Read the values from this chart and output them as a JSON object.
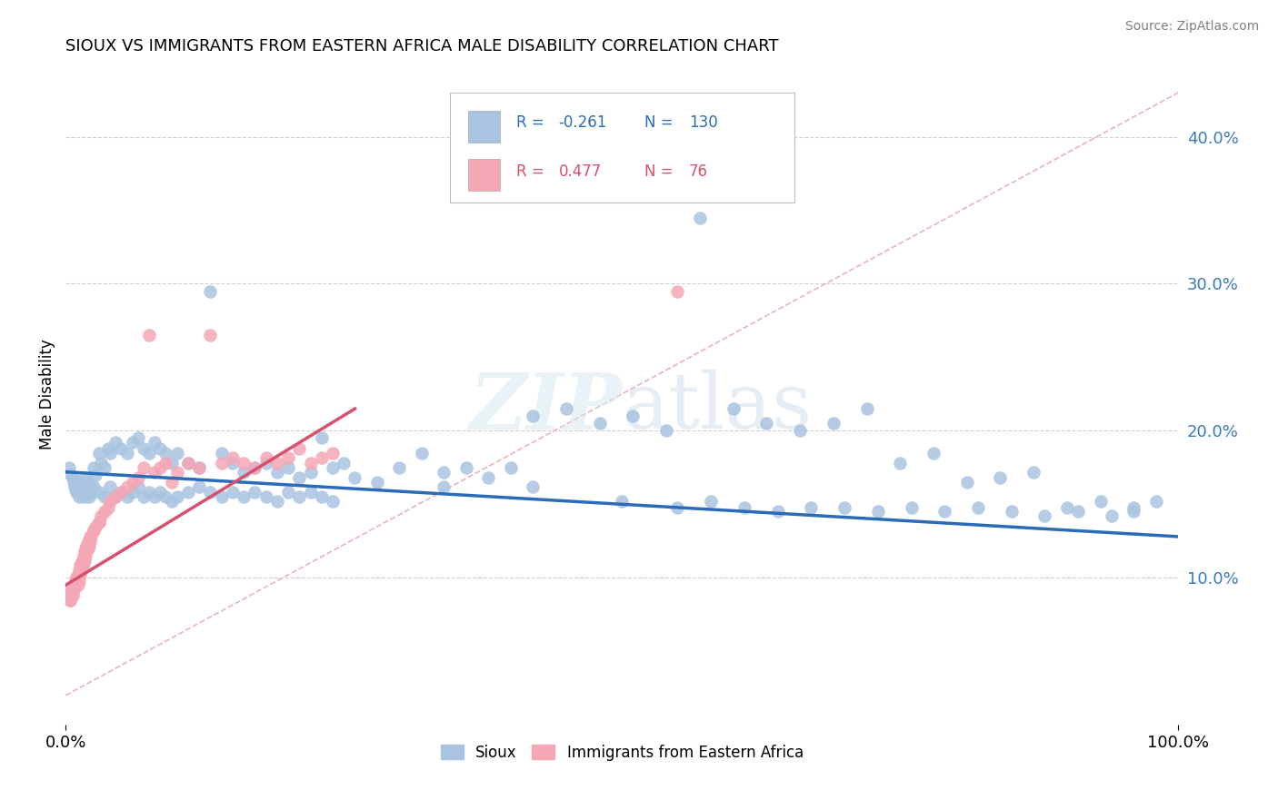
{
  "title": "SIOUX VS IMMIGRANTS FROM EASTERN AFRICA MALE DISABILITY CORRELATION CHART",
  "source": "Source: ZipAtlas.com",
  "ylabel": "Male Disability",
  "ylabel_right_ticks": [
    "10.0%",
    "20.0%",
    "30.0%",
    "40.0%"
  ],
  "ylabel_right_vals": [
    0.1,
    0.2,
    0.3,
    0.4
  ],
  "sioux_color": "#a8c4e0",
  "immigrants_color": "#f4a7b5",
  "sioux_line_color": "#2b6cb8",
  "immigrants_line_color": "#d94f6e",
  "background_color": "#ffffff",
  "xlim": [
    0.0,
    1.0
  ],
  "ylim": [
    0.0,
    0.45
  ],
  "sioux_x": [
    0.003,
    0.005,
    0.006,
    0.007,
    0.008,
    0.009,
    0.01,
    0.011,
    0.012,
    0.013,
    0.014,
    0.015,
    0.016,
    0.017,
    0.018,
    0.019,
    0.02,
    0.021,
    0.022,
    0.023,
    0.025,
    0.027,
    0.03,
    0.032,
    0.035,
    0.038,
    0.04,
    0.045,
    0.05,
    0.055,
    0.06,
    0.065,
    0.07,
    0.075,
    0.08,
    0.085,
    0.09,
    0.095,
    0.1,
    0.11,
    0.12,
    0.13,
    0.14,
    0.15,
    0.16,
    0.17,
    0.18,
    0.19,
    0.2,
    0.21,
    0.22,
    0.23,
    0.24,
    0.25,
    0.26,
    0.28,
    0.3,
    0.32,
    0.34,
    0.36,
    0.38,
    0.4,
    0.42,
    0.45,
    0.48,
    0.51,
    0.54,
    0.57,
    0.6,
    0.63,
    0.66,
    0.69,
    0.72,
    0.75,
    0.78,
    0.81,
    0.84,
    0.87,
    0.9,
    0.93,
    0.96,
    0.98,
    0.34,
    0.42,
    0.5,
    0.55,
    0.58,
    0.61,
    0.64,
    0.67,
    0.7,
    0.73,
    0.76,
    0.79,
    0.82,
    0.85,
    0.88,
    0.91,
    0.94,
    0.96,
    0.025,
    0.03,
    0.035,
    0.04,
    0.045,
    0.05,
    0.055,
    0.06,
    0.065,
    0.07,
    0.075,
    0.08,
    0.085,
    0.09,
    0.095,
    0.1,
    0.11,
    0.12,
    0.13,
    0.14,
    0.15,
    0.16,
    0.17,
    0.18,
    0.19,
    0.2,
    0.21,
    0.22,
    0.23,
    0.24
  ],
  "sioux_y": [
    0.175,
    0.17,
    0.168,
    0.165,
    0.162,
    0.16,
    0.158,
    0.165,
    0.155,
    0.16,
    0.162,
    0.158,
    0.155,
    0.168,
    0.162,
    0.158,
    0.165,
    0.155,
    0.162,
    0.158,
    0.175,
    0.17,
    0.185,
    0.178,
    0.175,
    0.188,
    0.185,
    0.192,
    0.188,
    0.185,
    0.192,
    0.195,
    0.188,
    0.185,
    0.192,
    0.188,
    0.185,
    0.178,
    0.185,
    0.178,
    0.175,
    0.295,
    0.185,
    0.178,
    0.172,
    0.175,
    0.178,
    0.172,
    0.175,
    0.168,
    0.172,
    0.195,
    0.175,
    0.178,
    0.168,
    0.165,
    0.175,
    0.185,
    0.172,
    0.175,
    0.168,
    0.175,
    0.21,
    0.215,
    0.205,
    0.21,
    0.2,
    0.345,
    0.215,
    0.205,
    0.2,
    0.205,
    0.215,
    0.178,
    0.185,
    0.165,
    0.168,
    0.172,
    0.148,
    0.152,
    0.148,
    0.152,
    0.162,
    0.162,
    0.152,
    0.148,
    0.152,
    0.148,
    0.145,
    0.148,
    0.148,
    0.145,
    0.148,
    0.145,
    0.148,
    0.145,
    0.142,
    0.145,
    0.142,
    0.145,
    0.162,
    0.158,
    0.155,
    0.162,
    0.155,
    0.158,
    0.155,
    0.158,
    0.162,
    0.155,
    0.158,
    0.155,
    0.158,
    0.155,
    0.152,
    0.155,
    0.158,
    0.162,
    0.158,
    0.155,
    0.158,
    0.155,
    0.158,
    0.155,
    0.152,
    0.158,
    0.155,
    0.158,
    0.155,
    0.152
  ],
  "immig_x": [
    0.002,
    0.003,
    0.004,
    0.005,
    0.006,
    0.007,
    0.008,
    0.009,
    0.01,
    0.011,
    0.012,
    0.013,
    0.014,
    0.015,
    0.016,
    0.017,
    0.018,
    0.019,
    0.02,
    0.021,
    0.022,
    0.023,
    0.025,
    0.027,
    0.03,
    0.032,
    0.035,
    0.038,
    0.04,
    0.045,
    0.05,
    0.055,
    0.06,
    0.065,
    0.07,
    0.075,
    0.08,
    0.085,
    0.09,
    0.095,
    0.1,
    0.11,
    0.12,
    0.13,
    0.14,
    0.15,
    0.16,
    0.17,
    0.18,
    0.19,
    0.2,
    0.21,
    0.22,
    0.23,
    0.24,
    0.004,
    0.005,
    0.006,
    0.007,
    0.008,
    0.009,
    0.01,
    0.011,
    0.012,
    0.013,
    0.014,
    0.015,
    0.016,
    0.017,
    0.018,
    0.019,
    0.02,
    0.022,
    0.025,
    0.03,
    0.55
  ],
  "immig_y": [
    0.092,
    0.088,
    0.085,
    0.09,
    0.088,
    0.092,
    0.095,
    0.098,
    0.1,
    0.095,
    0.098,
    0.102,
    0.105,
    0.108,
    0.11,
    0.112,
    0.115,
    0.118,
    0.12,
    0.122,
    0.125,
    0.128,
    0.132,
    0.135,
    0.138,
    0.142,
    0.145,
    0.148,
    0.152,
    0.155,
    0.158,
    0.162,
    0.165,
    0.168,
    0.175,
    0.265,
    0.172,
    0.175,
    0.178,
    0.165,
    0.172,
    0.178,
    0.175,
    0.265,
    0.178,
    0.182,
    0.178,
    0.175,
    0.182,
    0.178,
    0.182,
    0.188,
    0.178,
    0.182,
    0.185,
    0.085,
    0.088,
    0.09,
    0.092,
    0.095,
    0.098,
    0.1,
    0.102,
    0.105,
    0.108,
    0.11,
    0.112,
    0.115,
    0.118,
    0.12,
    0.122,
    0.125,
    0.128,
    0.132,
    0.138,
    0.295
  ]
}
